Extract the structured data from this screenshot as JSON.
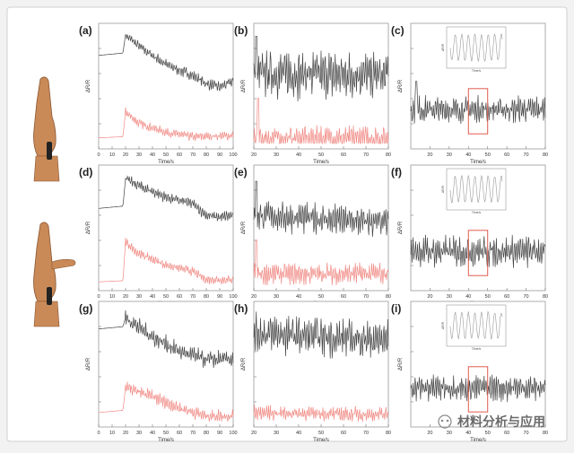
{
  "colors": {
    "page_bg": "#f2f2f2",
    "figure_bg": "#ffffff",
    "frame": "#d0d0d0",
    "axis": "#555555",
    "grid_tick": "#777777",
    "black_trace": "#444444",
    "red_trace": "#f08a84",
    "inset_trace": "#9a9a9a",
    "highlight_box": "#e05a4e",
    "skin": "#c98a58",
    "skin_dark": "#8a5530"
  },
  "panels": {
    "a": {
      "label": "(a)"
    },
    "b": {
      "label": "(b)"
    },
    "c": {
      "label": "(c)"
    },
    "d": {
      "label": "(d)"
    },
    "e": {
      "label": "(e)"
    },
    "f": {
      "label": "(f)"
    },
    "g": {
      "label": "(g)"
    },
    "h": {
      "label": "(h)"
    },
    "i": {
      "label": "(i)"
    }
  },
  "watermark": {
    "text": "材料分析与应用"
  },
  "chart_data": [
    {
      "panel": "a",
      "type": "line",
      "xlabel": "Time/s",
      "ylabel": "ΔR/R",
      "xlim": [
        0,
        100
      ],
      "x_ticks": [
        0,
        10,
        20,
        30,
        40,
        50,
        60,
        70,
        80,
        90,
        100
      ],
      "series": [
        {
          "color": "black",
          "trend": [
            [
              0,
              0.78
            ],
            [
              18,
              0.8
            ],
            [
              20,
              0.96
            ],
            [
              30,
              0.86
            ],
            [
              50,
              0.7
            ],
            [
              70,
              0.6
            ],
            [
              80,
              0.53
            ],
            [
              90,
              0.5
            ],
            [
              100,
              0.55
            ]
          ],
          "oscillation": 0.05,
          "start_osc": 20
        },
        {
          "color": "red",
          "trend": [
            [
              0,
              0.05
            ],
            [
              18,
              0.06
            ],
            [
              20,
              0.28
            ],
            [
              30,
              0.18
            ],
            [
              50,
              0.1
            ],
            [
              70,
              0.06
            ],
            [
              100,
              0.07
            ]
          ],
          "oscillation": 0.04,
          "start_osc": 20
        }
      ]
    },
    {
      "panel": "b",
      "type": "line",
      "xlabel": "Time/s",
      "ylabel": "ΔR/R",
      "xlim": [
        20,
        80
      ],
      "x_ticks": [
        20,
        30,
        40,
        50,
        60,
        70,
        80
      ],
      "series": [
        {
          "color": "black",
          "trend": [
            [
              20,
              0.62
            ],
            [
              80,
              0.6
            ]
          ],
          "oscillation": 0.22,
          "spike": [
            21,
            0.95
          ]
        },
        {
          "color": "red",
          "trend": [
            [
              20,
              0.05
            ],
            [
              80,
              0.04
            ]
          ],
          "oscillation": 0.12,
          "spike": [
            22,
            0.4
          ]
        }
      ]
    },
    {
      "panel": "c",
      "type": "line",
      "xlabel": "Time/s",
      "ylabel": "ΔR/R",
      "xlim": [
        10,
        80
      ],
      "x_ticks": [
        20,
        30,
        40,
        50,
        60,
        70,
        80
      ],
      "series": [
        {
          "color": "black",
          "trend": [
            [
              10,
              0.3
            ],
            [
              80,
              0.3
            ]
          ],
          "oscillation": 0.12,
          "spike": [
            13,
            0.55
          ]
        }
      ],
      "highlight": [
        40,
        50
      ],
      "inset": {
        "xlabel": "Time/s",
        "ylabel": "ΔR/R"
      }
    },
    {
      "panel": "d",
      "type": "line",
      "xlabel": "Time/s",
      "ylabel": "ΔR/R",
      "xlim": [
        0,
        100
      ],
      "x_ticks": [
        0,
        10,
        20,
        30,
        40,
        50,
        60,
        70,
        80,
        90,
        100
      ],
      "series": [
        {
          "color": "black",
          "trend": [
            [
              0,
              0.68
            ],
            [
              18,
              0.7
            ],
            [
              20,
              0.94
            ],
            [
              30,
              0.88
            ],
            [
              50,
              0.78
            ],
            [
              70,
              0.72
            ],
            [
              80,
              0.62
            ],
            [
              90,
              0.6
            ],
            [
              100,
              0.62
            ]
          ],
          "oscillation": 0.05,
          "start_osc": 20
        },
        {
          "color": "red",
          "trend": [
            [
              0,
              0.03
            ],
            [
              18,
              0.04
            ],
            [
              20,
              0.38
            ],
            [
              30,
              0.28
            ],
            [
              50,
              0.18
            ],
            [
              70,
              0.12
            ],
            [
              80,
              0.05
            ],
            [
              100,
              0.05
            ]
          ],
          "oscillation": 0.04,
          "start_osc": 20
        }
      ]
    },
    {
      "panel": "e",
      "type": "line",
      "xlabel": "Time/s",
      "ylabel": "ΔR/R",
      "xlim": [
        20,
        80
      ],
      "x_ticks": [
        20,
        30,
        40,
        50,
        60,
        70,
        80
      ],
      "series": [
        {
          "color": "black",
          "trend": [
            [
              20,
              0.62
            ],
            [
              80,
              0.55
            ]
          ],
          "oscillation": 0.14,
          "spike": [
            21,
            0.92
          ]
        },
        {
          "color": "red",
          "trend": [
            [
              20,
              0.1
            ],
            [
              80,
              0.1
            ]
          ],
          "oscillation": 0.1,
          "spike": [
            21,
            0.4
          ]
        }
      ]
    },
    {
      "panel": "f",
      "type": "line",
      "xlabel": "Time/s",
      "ylabel": "ΔR/R",
      "xlim": [
        10,
        80
      ],
      "x_ticks": [
        20,
        30,
        40,
        50,
        60,
        70,
        80
      ],
      "series": [
        {
          "color": "black",
          "trend": [
            [
              10,
              0.3
            ],
            [
              80,
              0.3
            ]
          ],
          "oscillation": 0.14
        }
      ],
      "highlight": [
        40,
        50
      ],
      "inset": {
        "xlabel": "Time/s",
        "ylabel": "ΔR/R"
      }
    },
    {
      "panel": "g",
      "type": "line",
      "xlabel": "Time/s",
      "ylabel": "ΔR/R",
      "xlim": [
        0,
        100
      ],
      "x_ticks": [
        0,
        10,
        20,
        30,
        40,
        50,
        60,
        70,
        80,
        90,
        100
      ],
      "series": [
        {
          "color": "black",
          "trend": [
            [
              0,
              0.82
            ],
            [
              18,
              0.84
            ],
            [
              20,
              0.92
            ],
            [
              40,
              0.75
            ],
            [
              60,
              0.62
            ],
            [
              80,
              0.55
            ],
            [
              100,
              0.55
            ]
          ],
          "oscillation": 0.08,
          "start_osc": 20
        },
        {
          "color": "red",
          "trend": [
            [
              0,
              0.08
            ],
            [
              18,
              0.1
            ],
            [
              20,
              0.3
            ],
            [
              40,
              0.22
            ],
            [
              60,
              0.12
            ],
            [
              80,
              0.05
            ],
            [
              100,
              0.05
            ]
          ],
          "oscillation": 0.06,
          "start_osc": 20
        }
      ]
    },
    {
      "panel": "h",
      "type": "line",
      "xlabel": "Time/s",
      "ylabel": "ΔR/R",
      "xlim": [
        20,
        80
      ],
      "x_ticks": [
        20,
        30,
        40,
        50,
        60,
        70,
        80
      ],
      "series": [
        {
          "color": "black",
          "trend": [
            [
              20,
              0.78
            ],
            [
              80,
              0.72
            ]
          ],
          "oscillation": 0.18
        },
        {
          "color": "red",
          "trend": [
            [
              20,
              0.08
            ],
            [
              80,
              0.06
            ]
          ],
          "oscillation": 0.07
        }
      ]
    },
    {
      "panel": "i",
      "type": "line",
      "xlabel": "Time/s",
      "ylabel": "ΔR/R",
      "xlim": [
        10,
        80
      ],
      "x_ticks": [
        20,
        30,
        40,
        50,
        60,
        70,
        80
      ],
      "series": [
        {
          "color": "black",
          "trend": [
            [
              10,
              0.3
            ],
            [
              80,
              0.3
            ]
          ],
          "oscillation": 0.12
        }
      ],
      "highlight": [
        40,
        50
      ],
      "inset": {
        "xlabel": "Time/s",
        "ylabel": "ΔR/R"
      }
    }
  ]
}
